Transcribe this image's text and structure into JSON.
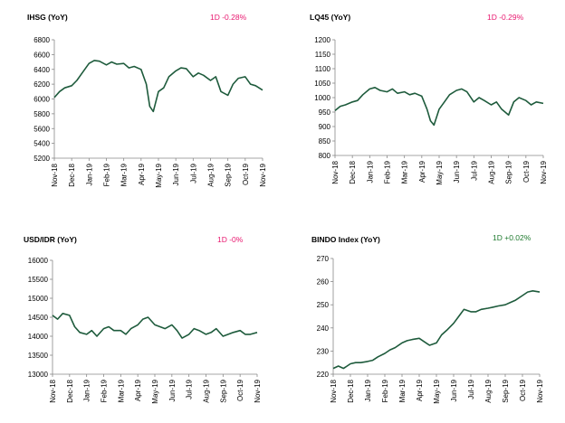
{
  "colors": {
    "line": "#1e5b3c",
    "negative": "#e8186f",
    "positive": "#1e7a2e",
    "axis": "#888888"
  },
  "chart_data": [
    {
      "type": "line",
      "title": "IHSG (YoY)",
      "change_text": "1D -0.28%",
      "change_sign": "negative",
      "ylim": [
        5200,
        6800
      ],
      "yticks": [
        5200,
        5400,
        5600,
        5800,
        6000,
        6200,
        6400,
        6600,
        6800
      ],
      "x_labels": [
        "Nov-18",
        "Dec-18",
        "Jan-19",
        "Feb-19",
        "Mar-19",
        "Apr-19",
        "May-19",
        "Jun-19",
        "Jul-19",
        "Aug-19",
        "Sep-19",
        "Oct-19",
        "Nov-19"
      ],
      "grid": false,
      "series": [
        {
          "x": [
            0,
            0.3,
            0.6,
            1,
            1.3,
            1.6,
            2,
            2.3,
            2.6,
            3,
            3.3,
            3.6,
            4,
            4.3,
            4.6,
            5,
            5.3,
            5.5,
            5.7,
            6,
            6.3,
            6.6,
            7,
            7.3,
            7.6,
            8,
            8.3,
            8.6,
            9,
            9.3,
            9.6,
            10,
            10.3,
            10.6,
            11,
            11.3,
            11.6,
            12
          ],
          "values": [
            6020,
            6100,
            6150,
            6180,
            6250,
            6350,
            6480,
            6520,
            6510,
            6460,
            6500,
            6470,
            6480,
            6420,
            6440,
            6400,
            6200,
            5900,
            5830,
            6100,
            6150,
            6300,
            6380,
            6420,
            6410,
            6300,
            6350,
            6320,
            6250,
            6300,
            6100,
            6050,
            6200,
            6280,
            6300,
            6200,
            6180,
            6120
          ]
        }
      ]
    },
    {
      "type": "line",
      "title": "LQ45 (YoY)",
      "change_text": "1D -0.29%",
      "change_sign": "negative",
      "ylim": [
        800,
        1200
      ],
      "yticks": [
        800,
        850,
        900,
        950,
        1000,
        1050,
        1100,
        1150,
        1200
      ],
      "x_labels": [
        "Nov-18",
        "Dec-18",
        "Jan-19",
        "Feb-19",
        "Mar-19",
        "Apr-19",
        "May-19",
        "Jun-19",
        "Jul-19",
        "Aug-19",
        "Sep-19",
        "Oct-19",
        "Nov-19"
      ],
      "grid": false,
      "series": [
        {
          "x": [
            0,
            0.3,
            0.6,
            1,
            1.3,
            1.6,
            2,
            2.3,
            2.6,
            3,
            3.3,
            3.6,
            4,
            4.3,
            4.6,
            5,
            5.3,
            5.5,
            5.7,
            6,
            6.3,
            6.6,
            7,
            7.3,
            7.6,
            8,
            8.3,
            8.6,
            9,
            9.3,
            9.6,
            10,
            10.3,
            10.6,
            11,
            11.3,
            11.6,
            12
          ],
          "values": [
            955,
            970,
            975,
            985,
            990,
            1010,
            1030,
            1035,
            1025,
            1020,
            1030,
            1015,
            1020,
            1010,
            1015,
            1005,
            960,
            920,
            905,
            960,
            985,
            1010,
            1025,
            1030,
            1020,
            985,
            1000,
            990,
            975,
            985,
            960,
            940,
            985,
            1000,
            990,
            975,
            985,
            980
          ]
        }
      ]
    },
    {
      "type": "line",
      "title": "USD/IDR (YoY)",
      "change_text": "1D -0%",
      "change_sign": "negative",
      "ylim": [
        13000,
        16000
      ],
      "yticks": [
        13000,
        13500,
        14000,
        14500,
        15000,
        15500,
        16000
      ],
      "x_labels": [
        "Nov-18",
        "Dec-18",
        "Jan-19",
        "Feb-19",
        "Mar-19",
        "Apr-19",
        "May-19",
        "Jun-19",
        "Jul-19",
        "Aug-19",
        "Sep-19",
        "Oct-19",
        "Nov-19"
      ],
      "grid": false,
      "series": [
        {
          "x": [
            0,
            0.3,
            0.6,
            1,
            1.3,
            1.6,
            2,
            2.3,
            2.6,
            3,
            3.3,
            3.6,
            4,
            4.3,
            4.6,
            5,
            5.3,
            5.6,
            6,
            6.3,
            6.6,
            7,
            7.3,
            7.6,
            8,
            8.3,
            8.6,
            9,
            9.3,
            9.6,
            10,
            10.3,
            10.6,
            11,
            11.3,
            11.6,
            12
          ],
          "values": [
            14550,
            14450,
            14600,
            14550,
            14250,
            14100,
            14050,
            14150,
            14000,
            14200,
            14250,
            14150,
            14150,
            14050,
            14200,
            14300,
            14450,
            14500,
            14300,
            14250,
            14200,
            14300,
            14150,
            13950,
            14050,
            14200,
            14150,
            14050,
            14100,
            14200,
            14000,
            14050,
            14100,
            14150,
            14050,
            14050,
            14100
          ]
        }
      ]
    },
    {
      "type": "line",
      "title": "BINDO Index (YoY)",
      "change_text": "1D +0.02%",
      "change_sign": "positive",
      "ylim": [
        220,
        270
      ],
      "yticks": [
        220,
        230,
        240,
        250,
        260,
        270
      ],
      "x_labels": [
        "Nov-18",
        "Dec-18",
        "Jan-19",
        "Feb-19",
        "Mar-19",
        "Apr-19",
        "May-19",
        "Jun-19",
        "Jul-19",
        "Aug-19",
        "Sep-19",
        "Oct-19",
        "Nov-19"
      ],
      "grid": false,
      "series": [
        {
          "x": [
            0,
            0.3,
            0.6,
            1,
            1.3,
            1.6,
            2,
            2.3,
            2.6,
            3,
            3.3,
            3.6,
            4,
            4.3,
            4.6,
            5,
            5.3,
            5.6,
            6,
            6.3,
            6.6,
            7,
            7.3,
            7.6,
            8,
            8.3,
            8.6,
            9,
            9.3,
            9.6,
            10,
            10.3,
            10.6,
            11,
            11.3,
            11.6,
            12
          ],
          "values": [
            222.5,
            223.5,
            222.5,
            224.5,
            225,
            225,
            225.5,
            226,
            227.5,
            229,
            230.5,
            231.5,
            233.5,
            234.5,
            235,
            235.5,
            234,
            232.5,
            233.5,
            237,
            239,
            242,
            245,
            248,
            247,
            247,
            248,
            248.5,
            249,
            249.5,
            250,
            251,
            252,
            254,
            255.5,
            256,
            255.5
          ]
        }
      ]
    }
  ]
}
